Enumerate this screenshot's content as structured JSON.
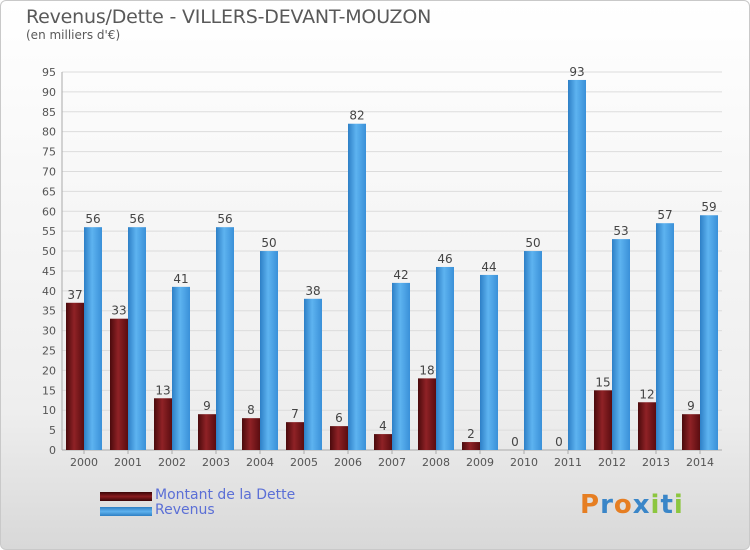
{
  "header": {
    "title": "Revenus/Dette - VILLERS-DEVANT-MOUZON",
    "subtitle": "(en milliers d'€)"
  },
  "legend": {
    "items": [
      {
        "label": "Montant de la Dette",
        "color": "#7a1518"
      },
      {
        "label": "Revenus",
        "color": "#3f9ae3"
      }
    ]
  },
  "logo": {
    "text": "Proxiti",
    "letters": [
      {
        "char": "P",
        "color": "#e67e22"
      },
      {
        "char": "r",
        "color": "#3a86c8"
      },
      {
        "char": "o",
        "color": "#e67e22"
      },
      {
        "char": "x",
        "color": "#3a86c8"
      },
      {
        "char": "i",
        "color": "#8cc63f"
      },
      {
        "char": "t",
        "color": "#3a86c8"
      },
      {
        "char": "i",
        "color": "#8cc63f"
      }
    ]
  },
  "chart_data": {
    "type": "bar",
    "title": "Revenus/Dette - VILLERS-DEVANT-MOUZON",
    "subtitle": "(en milliers d'€)",
    "categories": [
      "2000",
      "2001",
      "2002",
      "2003",
      "2004",
      "2005",
      "2006",
      "2007",
      "2008",
      "2009",
      "2010",
      "2011",
      "2012",
      "2013",
      "2014"
    ],
    "series": [
      {
        "name": "Montant de la Dette",
        "color": "#7a1518",
        "values": [
          37,
          33,
          13,
          9,
          8,
          7,
          6,
          4,
          18,
          2,
          0,
          0,
          15,
          12,
          9
        ]
      },
      {
        "name": "Revenus",
        "color": "#3f9ae3",
        "values": [
          56,
          56,
          41,
          56,
          50,
          38,
          82,
          42,
          46,
          44,
          50,
          93,
          53,
          57,
          59
        ]
      }
    ],
    "ylim": [
      0,
      95
    ],
    "yticks": [
      0,
      5,
      10,
      15,
      20,
      25,
      30,
      35,
      40,
      45,
      50,
      55,
      60,
      65,
      70,
      75,
      80,
      85,
      90,
      95
    ],
    "grid": true,
    "legend_position": "bottom-left"
  }
}
